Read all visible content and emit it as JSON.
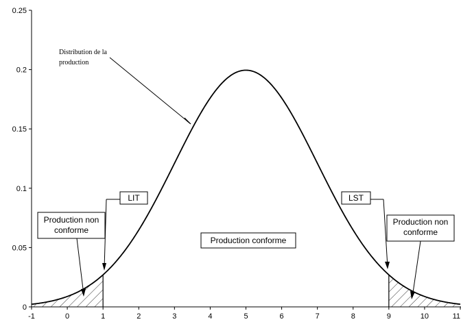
{
  "chart_data": {
    "type": "line",
    "title": "",
    "xlabel": "",
    "ylabel": "",
    "xlim": [
      -1,
      11
    ],
    "ylim": [
      0,
      0.25
    ],
    "x_ticks": [
      "-1",
      "0",
      "1",
      "2",
      "3",
      "4",
      "5",
      "6",
      "7",
      "8",
      "9",
      "10",
      "11"
    ],
    "y_ticks": [
      "0",
      "0.05",
      "0.1",
      "0.15",
      "0.2",
      "0.25"
    ],
    "grid": false,
    "legend": "none",
    "series": [
      {
        "distribution": "normal",
        "mean": 5,
        "std": 2,
        "peak": 0.1995,
        "color": "#000000"
      }
    ],
    "shaded_regions": [
      {
        "from": -1,
        "to": 1,
        "pattern": "hatch"
      },
      {
        "from": 9,
        "to": 11,
        "pattern": "hatch"
      }
    ],
    "limits": [
      {
        "label": "LIT",
        "x": 1
      },
      {
        "label": "LST",
        "x": 9
      }
    ],
    "annotations": {
      "distribution": [
        "Distribution de la",
        "production"
      ],
      "nonconform_left": [
        "Production non",
        "conforme"
      ],
      "nonconform_right": [
        "Production non",
        "conforme"
      ],
      "conform": "Production conforme",
      "lit": "LIT",
      "lst": "LST"
    }
  }
}
